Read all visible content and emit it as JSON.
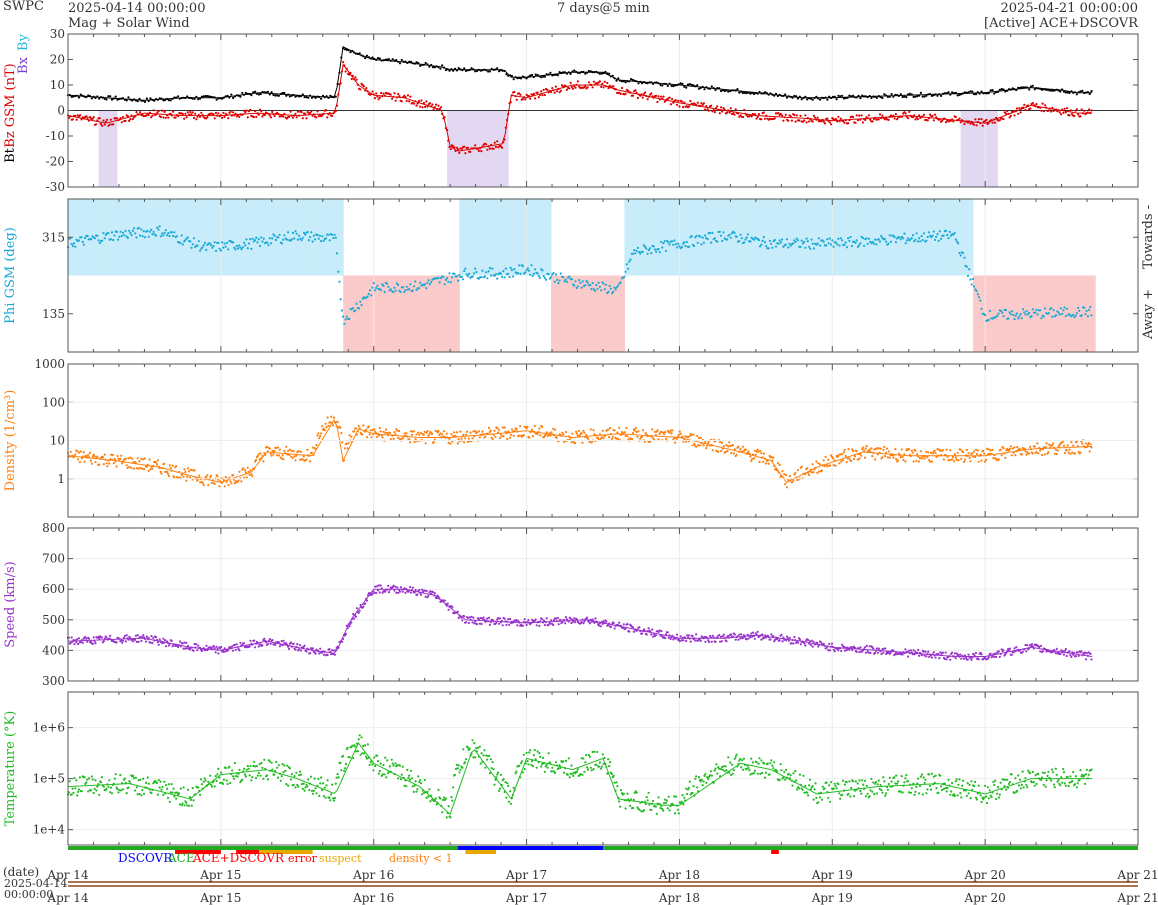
{
  "header": {
    "org": "SWPC",
    "start_time": "2025-04-14 00:00:00",
    "subtitle": "Mag + Solar Wind",
    "span": "7 days@5 min",
    "end_time": "2025-04-21 00:00:00",
    "source": "[Active] ACE+DSCOVR"
  },
  "legend": {
    "dscovr": "DSCOVR",
    "ace": "ACE",
    "ace_dscovr": "ACE+DSCOVR",
    "error": "error",
    "suspect": "suspect",
    "density": "density < 1"
  },
  "footer": {
    "date_label": "(date)",
    "date_value": "2025-04-14",
    "time_value": "00:00:00"
  },
  "colors": {
    "bt": "#000000",
    "bz": "#dd0000",
    "by": "#22b8e0",
    "bx": "#7744cc",
    "phi": "#1aa9d6",
    "towards_fill": "#c8ecf9",
    "away_fill": "#fbcaca",
    "bz_south_fill": "#e2d8f2",
    "density": "#ff7f0e",
    "speed": "#9933cc",
    "temperature": "#22bb22",
    "dscovr": "#0000ff",
    "ace": "#22aa22",
    "ace_dscovr": "#ff0000",
    "suspect": "#e8a800"
  },
  "chart_data": [
    {
      "type": "line",
      "name": "magnetic_field",
      "ylabel_parts": [
        "Bt",
        "Bz GSM (nT)",
        "Bx",
        "By"
      ],
      "ylim": [
        -30,
        30
      ],
      "yticks": [
        -30,
        -20,
        -10,
        0,
        10,
        20,
        30
      ],
      "x_unit": "days since 2025-04-14 00:00",
      "x": [
        0,
        0.25,
        0.5,
        0.75,
        1.0,
        1.25,
        1.5,
        1.75,
        1.8,
        1.9,
        2.0,
        2.2,
        2.45,
        2.5,
        2.55,
        2.75,
        2.85,
        2.9,
        3.0,
        3.3,
        3.5,
        3.6,
        4.0,
        4.5,
        4.8,
        5.0,
        5.5,
        6.0,
        6.3,
        6.5,
        6.6,
        6.7
      ],
      "series": [
        {
          "name": "Bt",
          "values": [
            6,
            5,
            4,
            5,
            5,
            7,
            6,
            5,
            25,
            22,
            20,
            19,
            17,
            16,
            16,
            16,
            16,
            13,
            13,
            15,
            15,
            12,
            10,
            7,
            5,
            5,
            6,
            7,
            9,
            8,
            7,
            7
          ]
        },
        {
          "name": "Bz GSM",
          "values": [
            -2,
            -5,
            -1,
            -2,
            -2,
            -1,
            -2,
            -1,
            18,
            10,
            6,
            5,
            0,
            -14,
            -16,
            -14,
            -13,
            6,
            5,
            10,
            10,
            8,
            3,
            -2,
            -3,
            -4,
            -2,
            -5,
            2,
            0,
            -1,
            -1
          ]
        }
      ]
    },
    {
      "type": "scatter",
      "name": "phi_gsm",
      "ylabel": "Phi GSM (deg)",
      "yticks": [
        135,
        315
      ],
      "ylim": [
        45,
        405
      ],
      "right_labels": [
        "Towards -",
        "Away +"
      ],
      "x_unit": "days since 2025-04-14 00:00",
      "x": [
        0,
        0.3,
        0.6,
        0.9,
        1.2,
        1.5,
        1.75,
        1.8,
        2.0,
        2.3,
        2.6,
        2.85,
        3.0,
        3.3,
        3.6,
        3.7,
        4.0,
        4.3,
        4.6,
        5.0,
        5.4,
        5.8,
        6.0,
        6.3,
        6.7
      ],
      "values": [
        300,
        320,
        330,
        290,
        300,
        320,
        310,
        120,
        195,
        200,
        230,
        230,
        240,
        210,
        190,
        280,
        300,
        320,
        300,
        300,
        310,
        320,
        130,
        135,
        140
      ]
    },
    {
      "type": "line",
      "name": "density",
      "ylabel": "Density (1/cm³)",
      "scale": "log",
      "ylim": [
        0.1,
        1000
      ],
      "ytick_labels": [
        "1",
        "10",
        "100",
        "1000"
      ],
      "x_unit": "days since 2025-04-14 00:00",
      "x": [
        0,
        0.3,
        0.6,
        0.8,
        1.0,
        1.2,
        1.3,
        1.6,
        1.75,
        1.8,
        1.9,
        2.0,
        2.3,
        2.5,
        2.8,
        3.0,
        3.3,
        3.6,
        4.0,
        4.4,
        4.6,
        4.7,
        4.9,
        5.2,
        5.5,
        6.0,
        6.3,
        6.7
      ],
      "values": [
        4,
        3,
        2,
        1.2,
        0.8,
        1.5,
        5,
        4,
        40,
        3,
        20,
        15,
        12,
        12,
        15,
        18,
        12,
        15,
        12,
        5,
        3,
        0.8,
        2,
        5,
        4,
        4,
        6,
        7
      ]
    },
    {
      "type": "line",
      "name": "speed",
      "ylabel": "Speed (km/s)",
      "ylim": [
        300,
        800
      ],
      "yticks": [
        300,
        400,
        500,
        600,
        700,
        800
      ],
      "x_unit": "days since 2025-04-14 00:00",
      "x": [
        0,
        0.5,
        0.8,
        1.0,
        1.3,
        1.6,
        1.75,
        1.85,
        2.0,
        2.2,
        2.4,
        2.6,
        3.0,
        3.4,
        3.6,
        4.0,
        4.3,
        4.5,
        4.8,
        5.0,
        5.3,
        5.8,
        6.0,
        6.3,
        6.7
      ],
      "values": [
        430,
        440,
        410,
        400,
        430,
        400,
        390,
        500,
        600,
        600,
        580,
        500,
        490,
        500,
        480,
        440,
        440,
        450,
        430,
        410,
        400,
        380,
        380,
        410,
        380
      ]
    },
    {
      "type": "line",
      "name": "temperature",
      "ylabel": "Temperature (°K)",
      "scale": "log",
      "ylim": [
        5000,
        5000000
      ],
      "ytick_labels": [
        "1e+4",
        "1e+5",
        "1e+6"
      ],
      "x_unit": "days since 2025-04-14 00:00",
      "x": [
        0,
        0.4,
        0.8,
        1.0,
        1.3,
        1.5,
        1.75,
        1.9,
        2.0,
        2.3,
        2.5,
        2.65,
        2.8,
        2.9,
        3.0,
        3.3,
        3.5,
        3.6,
        3.9,
        4.0,
        4.4,
        4.6,
        4.9,
        5.3,
        5.7,
        6.0,
        6.3,
        6.7
      ],
      "values": [
        70000,
        80000,
        40000,
        120000,
        150000,
        100000,
        50000,
        500000,
        200000,
        70000,
        20000,
        400000,
        100000,
        40000,
        250000,
        150000,
        250000,
        40000,
        30000,
        30000,
        200000,
        150000,
        50000,
        70000,
        80000,
        50000,
        100000,
        100000
      ]
    },
    {
      "type": "bar",
      "name": "source_flags",
      "categories": [
        "DSCOVR",
        "ACE",
        "ACE+DSCOVR",
        "error",
        "suspect",
        "density < 1"
      ],
      "x_unit": "days since 2025-04-14 00:00",
      "segments": [
        {
          "source": "ACE",
          "x": [
            0,
            7
          ]
        },
        {
          "source": "DSCOVR",
          "x": [
            2.55,
            3.5
          ]
        },
        {
          "source": "error",
          "x": [
            0.7,
            1.0
          ]
        },
        {
          "source": "error",
          "x": [
            1.1,
            1.25
          ]
        },
        {
          "source": "suspect",
          "x": [
            1.25,
            1.6
          ]
        },
        {
          "source": "suspect",
          "x": [
            2.6,
            2.8
          ]
        },
        {
          "source": "error",
          "x": [
            4.6,
            4.65
          ]
        }
      ]
    }
  ],
  "time_axis": {
    "ticks": [
      "Apr 14",
      "Apr 15",
      "Apr 16",
      "Apr 17",
      "Apr 18",
      "Apr 19",
      "Apr 20",
      "Apr 21"
    ]
  }
}
